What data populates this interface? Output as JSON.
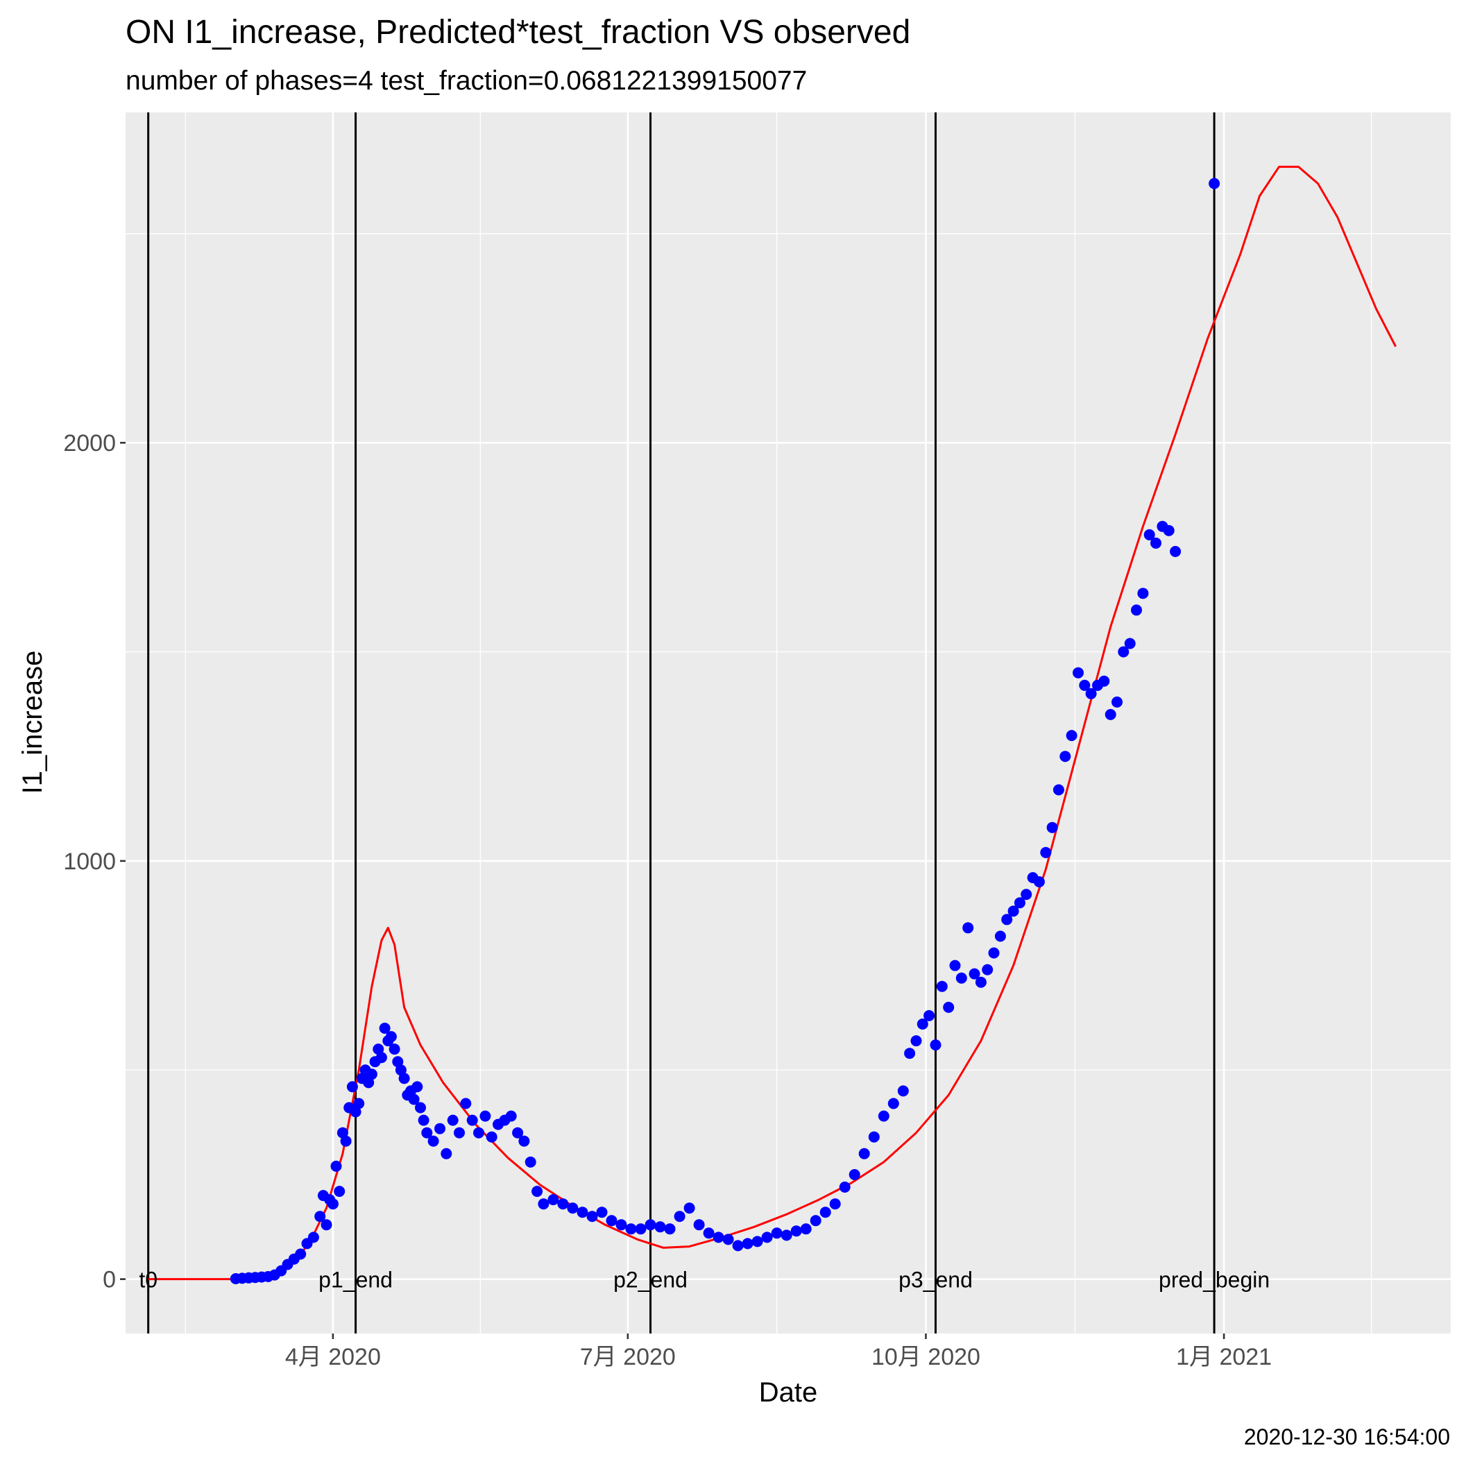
{
  "chart_data": {
    "type": "scatter",
    "title": "ON I1_increase, Predicted*test_fraction VS observed",
    "subtitle": "number of phases=4   test_fraction=0.0681221399150077",
    "xlabel": "Date",
    "ylabel": "I1_increase",
    "caption": "2020-12-30 16:54:00",
    "xlim": [
      "2020-01-28",
      "2021-03-12"
    ],
    "ylim": [
      -130,
      2790
    ],
    "x_ticks": [
      {
        "date": "2020-04-01",
        "label": "4月 2020"
      },
      {
        "date": "2020-07-01",
        "label": "7月 2020"
      },
      {
        "date": "2020-10-01",
        "label": "10月 2020"
      },
      {
        "date": "2021-01-01",
        "label": "1月 2021"
      }
    ],
    "y_ticks": [
      0,
      1000,
      2000
    ],
    "grid": true,
    "legend": "none",
    "colors": {
      "panel": "#ebebeb",
      "grid": "#ffffff",
      "observed": "#0000ff",
      "predicted": "#ff0000",
      "vline": "#000000"
    },
    "phase_lines": [
      {
        "date": "2020-02-04",
        "label": "t0"
      },
      {
        "date": "2020-04-08",
        "label": "p1_end"
      },
      {
        "date": "2020-07-08",
        "label": "p2_end"
      },
      {
        "date": "2020-10-04",
        "label": "p3_end"
      },
      {
        "date": "2020-12-29",
        "label": "pred_begin"
      }
    ],
    "observed_points": [
      [
        "2020-03-02",
        1
      ],
      [
        "2020-03-04",
        2
      ],
      [
        "2020-03-06",
        3
      ],
      [
        "2020-03-08",
        4
      ],
      [
        "2020-03-10",
        5
      ],
      [
        "2020-03-12",
        6
      ],
      [
        "2020-03-14",
        10
      ],
      [
        "2020-03-16",
        20
      ],
      [
        "2020-03-18",
        35
      ],
      [
        "2020-03-20",
        48
      ],
      [
        "2020-03-22",
        60
      ],
      [
        "2020-03-24",
        85
      ],
      [
        "2020-03-26",
        100
      ],
      [
        "2020-03-28",
        150
      ],
      [
        "2020-03-29",
        200
      ],
      [
        "2020-03-30",
        130
      ],
      [
        "2020-03-31",
        190
      ],
      [
        "2020-04-01",
        180
      ],
      [
        "2020-04-02",
        270
      ],
      [
        "2020-04-03",
        210
      ],
      [
        "2020-04-04",
        350
      ],
      [
        "2020-04-05",
        330
      ],
      [
        "2020-04-06",
        410
      ],
      [
        "2020-04-07",
        460
      ],
      [
        "2020-04-08",
        400
      ],
      [
        "2020-04-09",
        420
      ],
      [
        "2020-04-10",
        480
      ],
      [
        "2020-04-11",
        500
      ],
      [
        "2020-04-12",
        470
      ],
      [
        "2020-04-13",
        490
      ],
      [
        "2020-04-14",
        520
      ],
      [
        "2020-04-15",
        550
      ],
      [
        "2020-04-16",
        530
      ],
      [
        "2020-04-17",
        600
      ],
      [
        "2020-04-18",
        570
      ],
      [
        "2020-04-19",
        580
      ],
      [
        "2020-04-20",
        550
      ],
      [
        "2020-04-21",
        520
      ],
      [
        "2020-04-22",
        500
      ],
      [
        "2020-04-23",
        480
      ],
      [
        "2020-04-24",
        440
      ],
      [
        "2020-04-25",
        450
      ],
      [
        "2020-04-26",
        430
      ],
      [
        "2020-04-27",
        460
      ],
      [
        "2020-04-28",
        410
      ],
      [
        "2020-04-29",
        380
      ],
      [
        "2020-04-30",
        350
      ],
      [
        "2020-05-02",
        330
      ],
      [
        "2020-05-04",
        360
      ],
      [
        "2020-05-06",
        300
      ],
      [
        "2020-05-08",
        380
      ],
      [
        "2020-05-10",
        350
      ],
      [
        "2020-05-12",
        420
      ],
      [
        "2020-05-14",
        380
      ],
      [
        "2020-05-16",
        350
      ],
      [
        "2020-05-18",
        390
      ],
      [
        "2020-05-20",
        340
      ],
      [
        "2020-05-22",
        370
      ],
      [
        "2020-05-24",
        380
      ],
      [
        "2020-05-26",
        390
      ],
      [
        "2020-05-28",
        350
      ],
      [
        "2020-05-30",
        330
      ],
      [
        "2020-06-01",
        280
      ],
      [
        "2020-06-03",
        210
      ],
      [
        "2020-06-05",
        180
      ],
      [
        "2020-06-08",
        190
      ],
      [
        "2020-06-11",
        180
      ],
      [
        "2020-06-14",
        170
      ],
      [
        "2020-06-17",
        160
      ],
      [
        "2020-06-20",
        150
      ],
      [
        "2020-06-23",
        160
      ],
      [
        "2020-06-26",
        140
      ],
      [
        "2020-06-29",
        130
      ],
      [
        "2020-07-02",
        120
      ],
      [
        "2020-07-05",
        120
      ],
      [
        "2020-07-08",
        130
      ],
      [
        "2020-07-11",
        125
      ],
      [
        "2020-07-14",
        120
      ],
      [
        "2020-07-17",
        150
      ],
      [
        "2020-07-20",
        170
      ],
      [
        "2020-07-23",
        130
      ],
      [
        "2020-07-26",
        110
      ],
      [
        "2020-07-29",
        100
      ],
      [
        "2020-08-01",
        95
      ],
      [
        "2020-08-04",
        80
      ],
      [
        "2020-08-07",
        85
      ],
      [
        "2020-08-10",
        90
      ],
      [
        "2020-08-13",
        100
      ],
      [
        "2020-08-16",
        110
      ],
      [
        "2020-08-19",
        105
      ],
      [
        "2020-08-22",
        115
      ],
      [
        "2020-08-25",
        120
      ],
      [
        "2020-08-28",
        140
      ],
      [
        "2020-08-31",
        160
      ],
      [
        "2020-09-03",
        180
      ],
      [
        "2020-09-06",
        220
      ],
      [
        "2020-09-09",
        250
      ],
      [
        "2020-09-12",
        300
      ],
      [
        "2020-09-15",
        340
      ],
      [
        "2020-09-18",
        390
      ],
      [
        "2020-09-21",
        420
      ],
      [
        "2020-09-24",
        450
      ],
      [
        "2020-09-26",
        540
      ],
      [
        "2020-09-28",
        570
      ],
      [
        "2020-09-30",
        610
      ],
      [
        "2020-10-02",
        630
      ],
      [
        "2020-10-04",
        560
      ],
      [
        "2020-10-06",
        700
      ],
      [
        "2020-10-08",
        650
      ],
      [
        "2020-10-10",
        750
      ],
      [
        "2020-10-12",
        720
      ],
      [
        "2020-10-14",
        840
      ],
      [
        "2020-10-16",
        730
      ],
      [
        "2020-10-18",
        710
      ],
      [
        "2020-10-20",
        740
      ],
      [
        "2020-10-22",
        780
      ],
      [
        "2020-10-24",
        820
      ],
      [
        "2020-10-26",
        860
      ],
      [
        "2020-10-28",
        880
      ],
      [
        "2020-10-30",
        900
      ],
      [
        "2020-11-01",
        920
      ],
      [
        "2020-11-03",
        960
      ],
      [
        "2020-11-05",
        950
      ],
      [
        "2020-11-07",
        1020
      ],
      [
        "2020-11-09",
        1080
      ],
      [
        "2020-11-11",
        1170
      ],
      [
        "2020-11-13",
        1250
      ],
      [
        "2020-11-15",
        1300
      ],
      [
        "2020-11-17",
        1450
      ],
      [
        "2020-11-19",
        1420
      ],
      [
        "2020-11-21",
        1400
      ],
      [
        "2020-11-23",
        1420
      ],
      [
        "2020-11-25",
        1430
      ],
      [
        "2020-11-27",
        1350
      ],
      [
        "2020-11-29",
        1380
      ],
      [
        "2020-12-01",
        1500
      ],
      [
        "2020-12-03",
        1520
      ],
      [
        "2020-12-05",
        1600
      ],
      [
        "2020-12-07",
        1640
      ],
      [
        "2020-12-09",
        1780
      ],
      [
        "2020-12-11",
        1760
      ],
      [
        "2020-12-13",
        1800
      ],
      [
        "2020-12-15",
        1790
      ],
      [
        "2020-12-17",
        1740
      ],
      [
        "2020-12-29",
        2620
      ]
    ],
    "predicted_line": [
      [
        "2020-02-04",
        0
      ],
      [
        "2020-03-01",
        0
      ],
      [
        "2020-03-10",
        4
      ],
      [
        "2020-03-15",
        14
      ],
      [
        "2020-03-20",
        40
      ],
      [
        "2020-03-25",
        90
      ],
      [
        "2020-03-30",
        170
      ],
      [
        "2020-04-04",
        300
      ],
      [
        "2020-04-09",
        500
      ],
      [
        "2020-04-13",
        700
      ],
      [
        "2020-04-16",
        810
      ],
      [
        "2020-04-18",
        840
      ],
      [
        "2020-04-20",
        800
      ],
      [
        "2020-04-23",
        650
      ],
      [
        "2020-04-28",
        560
      ],
      [
        "2020-05-05",
        470
      ],
      [
        "2020-05-15",
        370
      ],
      [
        "2020-05-25",
        290
      ],
      [
        "2020-06-04",
        225
      ],
      [
        "2020-06-14",
        175
      ],
      [
        "2020-06-24",
        130
      ],
      [
        "2020-07-04",
        95
      ],
      [
        "2020-07-12",
        75
      ],
      [
        "2020-07-20",
        78
      ],
      [
        "2020-07-30",
        100
      ],
      [
        "2020-08-09",
        125
      ],
      [
        "2020-08-19",
        155
      ],
      [
        "2020-08-29",
        190
      ],
      [
        "2020-09-08",
        230
      ],
      [
        "2020-09-18",
        280
      ],
      [
        "2020-09-28",
        350
      ],
      [
        "2020-10-08",
        440
      ],
      [
        "2020-10-18",
        570
      ],
      [
        "2020-10-28",
        750
      ],
      [
        "2020-11-07",
        980
      ],
      [
        "2020-11-17",
        1270
      ],
      [
        "2020-11-27",
        1560
      ],
      [
        "2020-12-07",
        1800
      ],
      [
        "2020-12-17",
        2020
      ],
      [
        "2020-12-27",
        2250
      ],
      [
        "2021-01-06",
        2450
      ],
      [
        "2021-01-12",
        2590
      ],
      [
        "2021-01-18",
        2660
      ],
      [
        "2021-01-24",
        2660
      ],
      [
        "2021-01-30",
        2620
      ],
      [
        "2021-02-05",
        2540
      ],
      [
        "2021-02-11",
        2430
      ],
      [
        "2021-02-17",
        2320
      ],
      [
        "2021-02-23",
        2230
      ]
    ]
  }
}
